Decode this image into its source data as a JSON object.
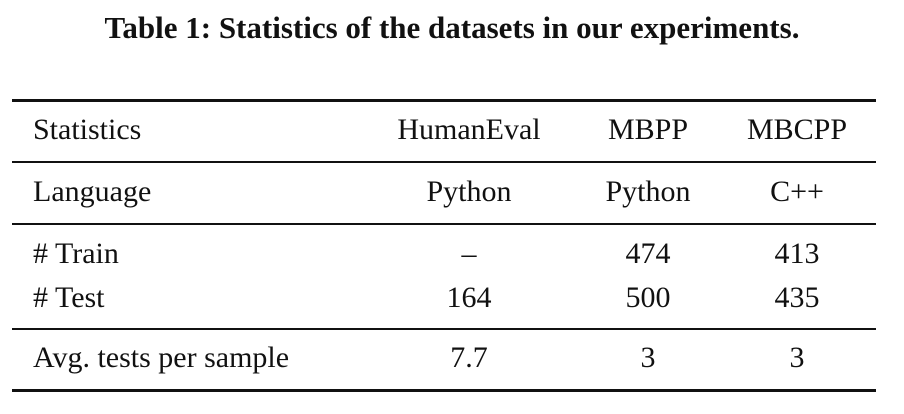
{
  "caption": "Table 1: Statistics of the datasets in our experiments.",
  "table": {
    "header": [
      "Statistics",
      "HumanEval",
      "MBPP",
      "MBCPP"
    ],
    "rows": [
      [
        "Language",
        "Python",
        "Python",
        "C++"
      ],
      [
        "# Train",
        "–",
        "474",
        "413"
      ],
      [
        "# Test",
        "164",
        "500",
        "435"
      ],
      [
        "Avg. tests per sample",
        "7.7",
        "3",
        "3"
      ]
    ]
  }
}
